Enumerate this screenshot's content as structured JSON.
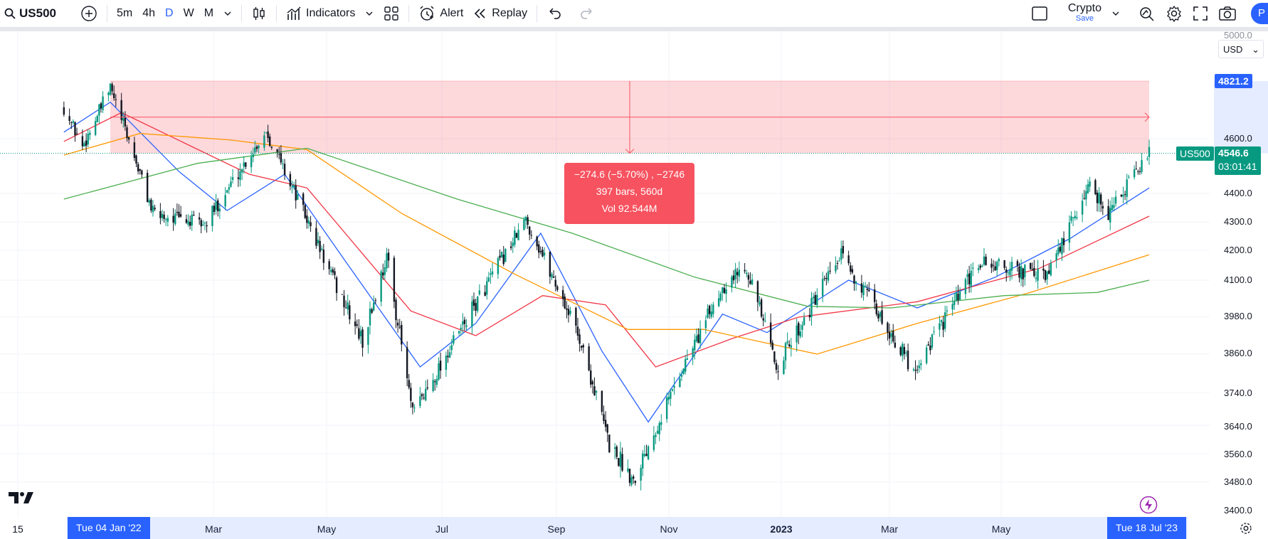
{
  "toolbar": {
    "symbol": "US500",
    "intervals": [
      "5m",
      "4h",
      "D",
      "W",
      "M"
    ],
    "active_interval": "D",
    "indicators_label": "Indicators",
    "alert_label": "Alert",
    "replay_label": "Replay",
    "layout_name": "Crypto",
    "save_label": "Save",
    "profile_initial": "P"
  },
  "price_axis": {
    "currency": "USD",
    "ticks": [
      "5000.0",
      "4600.0",
      "4400.0",
      "4300.0",
      "4200.0",
      "4100.0",
      "3980.0",
      "3860.0",
      "3740.0",
      "3640.0",
      "3560.0",
      "3480.0",
      "3400.0"
    ],
    "target_price": "4821.2",
    "symbol_tag": "US500",
    "last_price": "4546.6",
    "countdown": "03:01:41"
  },
  "time_axis": {
    "ticks": [
      "15",
      "Mar",
      "May",
      "Jul",
      "Sep",
      "Nov",
      "2023",
      "Mar",
      "May"
    ],
    "range_start": "Tue 04 Jan '22",
    "range_end": "Tue 18 Jul '23"
  },
  "measure": {
    "line1": "−274.6 (−5.70%) , −2746",
    "line2": "397 bars, 560d",
    "line3": "Vol 92.544M"
  },
  "colors": {
    "accent": "#2962ff",
    "up": "#089981",
    "down": "#131722",
    "measure": "#f7525f",
    "ma_fast": "#2962ff",
    "ma_mid": "#f23645",
    "ma_slow": "#ff9800",
    "ma_long": "#4caf50"
  },
  "chart_data": {
    "type": "candlestick",
    "symbol": "US500",
    "interval": "D",
    "ylim": [
      3400,
      5000
    ],
    "keypoints": [
      [
        "2021-12-10",
        4720
      ],
      [
        "2021-12-20",
        4570
      ],
      [
        "2022-01-04",
        4795
      ],
      [
        "2022-01-27",
        4330
      ],
      [
        "2022-02-24",
        4290
      ],
      [
        "2022-03-29",
        4630
      ],
      [
        "2022-05-02",
        4130
      ],
      [
        "2022-05-20",
        3900
      ],
      [
        "2022-06-02",
        4180
      ],
      [
        "2022-06-16",
        3670
      ],
      [
        "2022-08-16",
        4305
      ],
      [
        "2022-09-13",
        3930
      ],
      [
        "2022-09-30",
        3585
      ],
      [
        "2022-10-13",
        3490
      ],
      [
        "2022-11-30",
        4080
      ],
      [
        "2022-12-13",
        4150
      ],
      [
        "2022-12-29",
        3820
      ],
      [
        "2023-02-02",
        4180
      ],
      [
        "2023-03-13",
        3810
      ],
      [
        "2023-04-18",
        4160
      ],
      [
        "2023-05-24",
        4110
      ],
      [
        "2023-06-16",
        4435
      ],
      [
        "2023-06-26",
        4330
      ],
      [
        "2023-07-18",
        4546.6
      ]
    ],
    "moving_averages": [
      {
        "color": "#2962ff",
        "points": [
          [
            "2021-12-10",
            4625
          ],
          [
            "2022-01-04",
            4740
          ],
          [
            "2022-02-10",
            4480
          ],
          [
            "2022-03-08",
            4340
          ],
          [
            "2022-04-08",
            4470
          ],
          [
            "2022-05-10",
            4170
          ],
          [
            "2022-06-20",
            3820
          ],
          [
            "2022-07-20",
            3960
          ],
          [
            "2022-08-24",
            4260
          ],
          [
            "2022-09-26",
            3870
          ],
          [
            "2022-10-21",
            3650
          ],
          [
            "2022-11-30",
            3990
          ],
          [
            "2022-12-24",
            3930
          ],
          [
            "2023-02-06",
            4100
          ],
          [
            "2023-03-15",
            4010
          ],
          [
            "2023-04-26",
            4110
          ],
          [
            "2023-06-05",
            4240
          ],
          [
            "2023-07-18",
            4420
          ]
        ]
      },
      {
        "color": "#f23645",
        "points": [
          [
            "2021-12-10",
            4590
          ],
          [
            "2022-01-10",
            4700
          ],
          [
            "2022-03-20",
            4470
          ],
          [
            "2022-04-20",
            4420
          ],
          [
            "2022-06-15",
            4000
          ],
          [
            "2022-07-20",
            3920
          ],
          [
            "2022-08-25",
            4050
          ],
          [
            "2022-09-28",
            4020
          ],
          [
            "2022-10-25",
            3820
          ],
          [
            "2022-12-05",
            3910
          ],
          [
            "2023-01-10",
            3980
          ],
          [
            "2023-03-15",
            4030
          ],
          [
            "2023-05-20",
            4140
          ],
          [
            "2023-07-18",
            4320
          ]
        ]
      },
      {
        "color": "#ff9800",
        "points": [
          [
            "2021-12-10",
            4540
          ],
          [
            "2022-01-20",
            4620
          ],
          [
            "2022-03-10",
            4595
          ],
          [
            "2022-04-20",
            4560
          ],
          [
            "2022-06-10",
            4330
          ],
          [
            "2022-08-10",
            4120
          ],
          [
            "2022-10-10",
            3940
          ],
          [
            "2022-11-20",
            3940
          ],
          [
            "2023-01-20",
            3860
          ],
          [
            "2023-03-15",
            3960
          ],
          [
            "2023-05-15",
            4060
          ],
          [
            "2023-07-18",
            4185
          ]
        ]
      },
      {
        "color": "#4caf50",
        "points": [
          [
            "2021-12-10",
            4380
          ],
          [
            "2022-02-20",
            4510
          ],
          [
            "2022-04-20",
            4565
          ],
          [
            "2022-07-10",
            4380
          ],
          [
            "2022-09-10",
            4260
          ],
          [
            "2022-11-15",
            4110
          ],
          [
            "2023-01-15",
            4015
          ],
          [
            "2023-03-01",
            4010
          ],
          [
            "2023-05-01",
            4050
          ],
          [
            "2023-06-20",
            4060
          ],
          [
            "2023-07-18",
            4100
          ]
        ]
      }
    ],
    "measure_range": {
      "from_date": "2022-01-04",
      "to_date": "2023-07-18",
      "from_price": 4821.2,
      "to_price": 4546.6
    }
  }
}
